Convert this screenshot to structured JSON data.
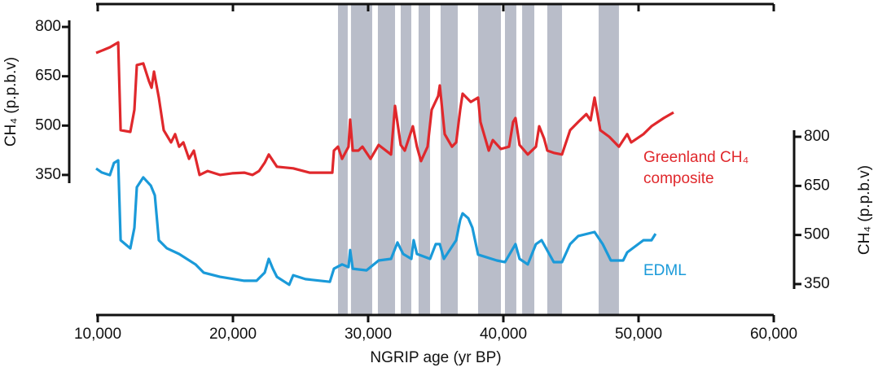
{
  "chart_data": {
    "type": "line",
    "xlabel": "NGRIP age (yr BP)",
    "ylabel": "CH₄ (p.p.b.v)",
    "y2label": "CH₄ (p.p.b.v)",
    "xlim": [
      10000,
      60000
    ],
    "xticks": [
      {
        "value": 10000,
        "label": "10,000"
      },
      {
        "value": 20000,
        "label": "20,000"
      },
      {
        "value": 30000,
        "label": "30,000"
      },
      {
        "value": 40000,
        "label": "40,000"
      },
      {
        "value": 50000,
        "label": "50,000"
      },
      {
        "value": 60000,
        "label": "60,000"
      }
    ],
    "ylim": [
      325,
      820
    ],
    "yticks": [
      350,
      500,
      650,
      800
    ],
    "y2lim": [
      335,
      820
    ],
    "y2ticks": [
      350,
      500,
      650,
      800
    ],
    "band_color": "#b9bdc9",
    "shaded_intervals": [
      [
        27770,
        28490
      ],
      [
        28730,
        30300
      ],
      [
        30720,
        31990
      ],
      [
        32410,
        33190
      ],
      [
        33730,
        34580
      ],
      [
        35360,
        36630
      ],
      [
        38130,
        39820
      ],
      [
        40120,
        40960
      ],
      [
        41390,
        42290
      ],
      [
        43250,
        44340
      ],
      [
        47050,
        48550
      ]
    ],
    "series": [
      {
        "name": "Greenland CH₄ composite",
        "color": "#e0282c",
        "x": [
          9880,
          10300,
          10900,
          11510,
          11690,
          12410,
          12710,
          12890,
          13370,
          13800,
          13980,
          14160,
          14520,
          14880,
          15420,
          15720,
          16020,
          16330,
          16750,
          17110,
          17530,
          18130,
          19040,
          19940,
          20840,
          21450,
          21930,
          22350,
          22650,
          23250,
          24460,
          25660,
          27350,
          27470,
          27770,
          28070,
          28550,
          28670,
          28860,
          29280,
          29580,
          30180,
          30780,
          31690,
          31990,
          32410,
          32710,
          33310,
          33610,
          33910,
          34400,
          34700,
          35180,
          35300,
          35480,
          35660,
          36200,
          36510,
          36810,
          36990,
          37590,
          38130,
          38310,
          38920,
          39220,
          39820,
          40420,
          40720,
          40900,
          41200,
          41810,
          42410,
          42650,
          43010,
          43250,
          43730,
          44340,
          44940,
          45540,
          46140,
          46450,
          46750,
          47170,
          47830,
          48550,
          49160,
          49460,
          50360,
          50960,
          51870,
          52590
        ],
        "values": [
          721,
          728,
          738,
          753,
          486,
          481,
          548,
          684,
          689,
          634,
          615,
          664,
          585,
          486,
          449,
          474,
          436,
          449,
          399,
          424,
          350,
          362,
          350,
          355,
          357,
          350,
          362,
          387,
          412,
          375,
          370,
          357,
          357,
          424,
          436,
          399,
          436,
          518,
          424,
          424,
          436,
          399,
          441,
          412,
          560,
          441,
          424,
          498,
          436,
          392,
          436,
          548,
          590,
          622,
          548,
          474,
          436,
          449,
          548,
          597,
          572,
          585,
          511,
          424,
          456,
          429,
          436,
          511,
          523,
          441,
          412,
          436,
          498,
          461,
          424,
          417,
          412,
          486,
          511,
          535,
          516,
          585,
          486,
          466,
          436,
          474,
          449,
          474,
          498,
          523,
          540
        ]
      },
      {
        "name": "EDML",
        "color": "#1a9ad9",
        "axis": "y2",
        "x": [
          9880,
          10300,
          10900,
          11200,
          11510,
          11690,
          12410,
          12710,
          12890,
          13370,
          13920,
          14220,
          14520,
          15120,
          16020,
          17230,
          17830,
          19040,
          20840,
          21750,
          22350,
          22650,
          22950,
          23250,
          24160,
          24460,
          25360,
          27170,
          27470,
          28070,
          28550,
          28670,
          28860,
          29880,
          30780,
          31690,
          32170,
          32590,
          33190,
          33370,
          33610,
          34580,
          35000,
          35300,
          35600,
          36510,
          36810,
          36990,
          37410,
          37710,
          38130,
          39520,
          40120,
          40900,
          41200,
          41810,
          42410,
          42830,
          43730,
          44340,
          44940,
          45540,
          46750,
          47350,
          47950,
          48860,
          49160,
          50360,
          50960,
          51260
        ],
        "values": [
          703,
          691,
          683,
          720,
          728,
          484,
          459,
          522,
          646,
          676,
          651,
          621,
          484,
          459,
          442,
          410,
          385,
          372,
          360,
          360,
          385,
          427,
          397,
          372,
          348,
          377,
          365,
          357,
          397,
          410,
          402,
          454,
          397,
          392,
          422,
          427,
          477,
          442,
          427,
          484,
          442,
          427,
          472,
          472,
          427,
          484,
          546,
          566,
          551,
          522,
          440,
          422,
          417,
          472,
          427,
          410,
          472,
          484,
          417,
          417,
          472,
          497,
          509,
          472,
          422,
          422,
          447,
          484,
          484,
          504
        ]
      }
    ]
  }
}
